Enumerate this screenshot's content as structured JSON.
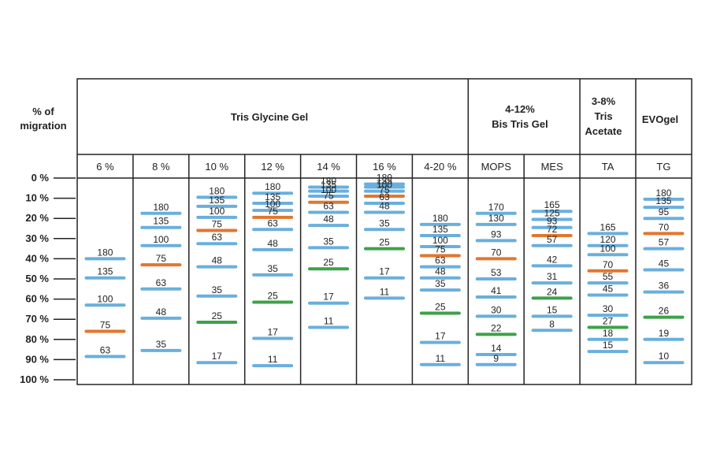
{
  "title_axis": [
    "% of",
    "migration"
  ],
  "axis_ticks": [
    "0 %",
    "10 %",
    "20 %",
    "30 %",
    "40 %",
    "50 %",
    "60 %",
    "70 %",
    "80 %",
    "90 %",
    "100 %"
  ],
  "colors": {
    "standard": "#6aafdd",
    "reference": "#e2762f",
    "marker": "#3ea14a",
    "grid": "#222222"
  },
  "groups": [
    {
      "label": [
        "Tris Glycine Gel"
      ]
    },
    {
      "label": [
        "4-12%",
        "Bis Tris Gel"
      ]
    },
    {
      "label": [
        "3-8%",
        "Tris",
        "Acetate"
      ]
    },
    {
      "label": [
        "EVOgel"
      ]
    }
  ],
  "lanes": [
    {
      "name": "6 %",
      "bands": [
        {
          "kda": "180",
          "pct": 40,
          "color": "standard"
        },
        {
          "kda": "135",
          "pct": 49.5,
          "color": "standard"
        },
        {
          "kda": "100",
          "pct": 63,
          "color": "standard"
        },
        {
          "kda": "75",
          "pct": 76,
          "color": "reference"
        },
        {
          "kda": "63",
          "pct": 88.5,
          "color": "standard"
        }
      ]
    },
    {
      "name": "8 %",
      "bands": [
        {
          "kda": "180",
          "pct": 17.5,
          "color": "standard"
        },
        {
          "kda": "135",
          "pct": 24.5,
          "color": "standard"
        },
        {
          "kda": "100",
          "pct": 33.5,
          "color": "standard"
        },
        {
          "kda": "75",
          "pct": 43,
          "color": "reference"
        },
        {
          "kda": "63",
          "pct": 55,
          "color": "standard"
        },
        {
          "kda": "48",
          "pct": 69.5,
          "color": "standard"
        },
        {
          "kda": "35",
          "pct": 85.5,
          "color": "standard"
        }
      ]
    },
    {
      "name": "10 %",
      "bands": [
        {
          "kda": "180",
          "pct": 9.5,
          "color": "standard"
        },
        {
          "kda": "135",
          "pct": 14,
          "color": "standard"
        },
        {
          "kda": "100",
          "pct": 19.5,
          "color": "standard"
        },
        {
          "kda": "75",
          "pct": 26,
          "color": "reference"
        },
        {
          "kda": "63",
          "pct": 32.5,
          "color": "standard"
        },
        {
          "kda": "48",
          "pct": 44,
          "color": "standard"
        },
        {
          "kda": "35",
          "pct": 58.5,
          "color": "standard"
        },
        {
          "kda": "25",
          "pct": 71.5,
          "color": "marker"
        },
        {
          "kda": "17",
          "pct": 91.5,
          "color": "standard"
        }
      ]
    },
    {
      "name": "12 %",
      "bands": [
        {
          "kda": "180",
          "pct": 7.5,
          "color": "standard"
        },
        {
          "kda": "135",
          "pct": 12.5,
          "color": "standard"
        },
        {
          "kda": "100",
          "pct": 16,
          "color": "standard"
        },
        {
          "kda": "75",
          "pct": 19.5,
          "color": "reference"
        },
        {
          "kda": "63",
          "pct": 25.5,
          "color": "standard"
        },
        {
          "kda": "48",
          "pct": 35.5,
          "color": "standard"
        },
        {
          "kda": "35",
          "pct": 48,
          "color": "standard"
        },
        {
          "kda": "25",
          "pct": 61.5,
          "color": "marker"
        },
        {
          "kda": "17",
          "pct": 79.5,
          "color": "standard"
        },
        {
          "kda": "11",
          "pct": 93,
          "color": "standard"
        }
      ]
    },
    {
      "name": "14 %",
      "bands": [
        {
          "kda": "180",
          "pct": 4.5,
          "color": "standard"
        },
        {
          "kda": "135",
          "pct": 6.5,
          "color": "standard"
        },
        {
          "kda": "100",
          "pct": 9,
          "color": "standard"
        },
        {
          "kda": "75",
          "pct": 12,
          "color": "reference"
        },
        {
          "kda": "63",
          "pct": 17,
          "color": "standard"
        },
        {
          "kda": "48",
          "pct": 23.5,
          "color": "standard"
        },
        {
          "kda": "35",
          "pct": 34.5,
          "color": "standard"
        },
        {
          "kda": "25",
          "pct": 45,
          "color": "marker"
        },
        {
          "kda": "17",
          "pct": 62,
          "color": "standard"
        },
        {
          "kda": "11",
          "pct": 74,
          "color": "standard"
        }
      ]
    },
    {
      "name": "16 %",
      "bands": [
        {
          "kda": "180",
          "pct": 3,
          "color": "standard"
        },
        {
          "kda": "135",
          "pct": 4.5,
          "color": "standard"
        },
        {
          "kda": "100",
          "pct": 6.5,
          "color": "standard"
        },
        {
          "kda": "75",
          "pct": 9,
          "color": "reference"
        },
        {
          "kda": "63",
          "pct": 12.5,
          "color": "standard"
        },
        {
          "kda": "48",
          "pct": 17,
          "color": "standard"
        },
        {
          "kda": "35",
          "pct": 25.5,
          "color": "standard"
        },
        {
          "kda": "25",
          "pct": 35,
          "color": "marker"
        },
        {
          "kda": "17",
          "pct": 49.5,
          "color": "standard"
        },
        {
          "kda": "11",
          "pct": 59.5,
          "color": "standard"
        }
      ]
    },
    {
      "name": "4-20 %",
      "bands": [
        {
          "kda": "180",
          "pct": 23,
          "color": "standard"
        },
        {
          "kda": "135",
          "pct": 28.5,
          "color": "standard"
        },
        {
          "kda": "100",
          "pct": 34,
          "color": "standard"
        },
        {
          "kda": "75",
          "pct": 38.5,
          "color": "reference"
        },
        {
          "kda": "63",
          "pct": 44,
          "color": "standard"
        },
        {
          "kda": "48",
          "pct": 49.5,
          "color": "standard"
        },
        {
          "kda": "35",
          "pct": 55.5,
          "color": "standard"
        },
        {
          "kda": "25",
          "pct": 67,
          "color": "marker"
        },
        {
          "kda": "17",
          "pct": 81.5,
          "color": "standard"
        },
        {
          "kda": "11",
          "pct": 92.5,
          "color": "standard"
        }
      ]
    },
    {
      "name": "MOPS",
      "bands": [
        {
          "kda": "170",
          "pct": 17.5,
          "color": "standard"
        },
        {
          "kda": "130",
          "pct": 23,
          "color": "standard"
        },
        {
          "kda": "93",
          "pct": 31,
          "color": "standard"
        },
        {
          "kda": "70",
          "pct": 40,
          "color": "reference"
        },
        {
          "kda": "53",
          "pct": 50,
          "color": "standard"
        },
        {
          "kda": "41",
          "pct": 59,
          "color": "standard"
        },
        {
          "kda": "30",
          "pct": 68.5,
          "color": "standard"
        },
        {
          "kda": "22",
          "pct": 77.5,
          "color": "marker"
        },
        {
          "kda": "14",
          "pct": 87.5,
          "color": "standard"
        },
        {
          "kda": "9",
          "pct": 92.5,
          "color": "standard"
        }
      ]
    },
    {
      "name": "MES",
      "bands": [
        {
          "kda": "165",
          "pct": 16.5,
          "color": "standard"
        },
        {
          "kda": "125",
          "pct": 20.5,
          "color": "standard"
        },
        {
          "kda": "93",
          "pct": 24.5,
          "color": "standard"
        },
        {
          "kda": "72",
          "pct": 28.5,
          "color": "reference"
        },
        {
          "kda": "57",
          "pct": 33.5,
          "color": "standard"
        },
        {
          "kda": "42",
          "pct": 43.5,
          "color": "standard"
        },
        {
          "kda": "31",
          "pct": 52,
          "color": "standard"
        },
        {
          "kda": "24",
          "pct": 59.5,
          "color": "marker"
        },
        {
          "kda": "15",
          "pct": 68.5,
          "color": "standard"
        },
        {
          "kda": "8",
          "pct": 75.5,
          "color": "standard"
        }
      ]
    },
    {
      "name": "TA",
      "bands": [
        {
          "kda": "165",
          "pct": 27.5,
          "color": "standard"
        },
        {
          "kda": "120",
          "pct": 33.5,
          "color": "standard"
        },
        {
          "kda": "100",
          "pct": 38,
          "color": "standard"
        },
        {
          "kda": "70",
          "pct": 46,
          "color": "reference"
        },
        {
          "kda": "55",
          "pct": 52,
          "color": "standard"
        },
        {
          "kda": "45",
          "pct": 58,
          "color": "standard"
        },
        {
          "kda": "30",
          "pct": 68,
          "color": "standard"
        },
        {
          "kda": "27",
          "pct": 74,
          "color": "marker"
        },
        {
          "kda": "18",
          "pct": 80,
          "color": "standard"
        },
        {
          "kda": "15",
          "pct": 86,
          "color": "standard"
        }
      ]
    },
    {
      "name": "TG",
      "bands": [
        {
          "kda": "180",
          "pct": 10.5,
          "color": "standard"
        },
        {
          "kda": "135",
          "pct": 14.5,
          "color": "standard"
        },
        {
          "kda": "95",
          "pct": 20,
          "color": "standard"
        },
        {
          "kda": "70",
          "pct": 27.5,
          "color": "reference"
        },
        {
          "kda": "57",
          "pct": 35,
          "color": "standard"
        },
        {
          "kda": "45",
          "pct": 45.5,
          "color": "standard"
        },
        {
          "kda": "36",
          "pct": 56.5,
          "color": "standard"
        },
        {
          "kda": "26",
          "pct": 69,
          "color": "marker"
        },
        {
          "kda": "19",
          "pct": 80,
          "color": "standard"
        },
        {
          "kda": "10",
          "pct": 91.5,
          "color": "standard"
        }
      ]
    }
  ]
}
